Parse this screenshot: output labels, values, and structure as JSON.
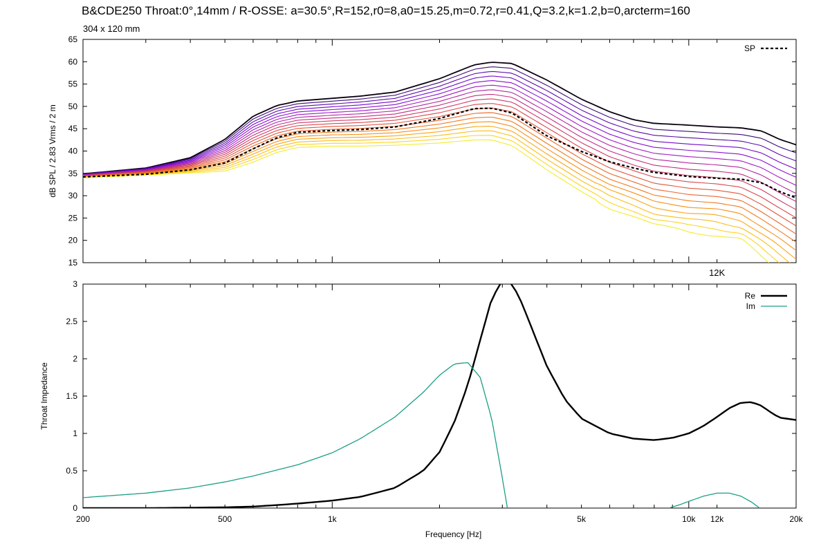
{
  "title": "B&CDE250 Throat:0°,14mm / R-OSSE: a=30.5°,R=152,r0=8,a0=15.25,m=0.72,r=0.41,Q=3.2,k=1.2,b=0,arcterm=160",
  "subtitle": "304 x 120 mm",
  "chart_data": [
    {
      "type": "line",
      "xscale": "log",
      "xlim": [
        200,
        20000
      ],
      "ylim": [
        15,
        65
      ],
      "ylabel": "dB SPL / 2.83 Vrms / 2 m",
      "yticks": [
        15,
        20,
        25,
        30,
        35,
        40,
        45,
        50,
        55,
        60,
        65
      ],
      "annotation": "12K",
      "legend": {
        "position": "top-right",
        "entries": [
          "SP"
        ]
      },
      "curve_colors": [
        "#0a0010",
        "#3c0b78",
        "#5a0aa8",
        "#7309c8",
        "#8a10d0",
        "#9e1bc0",
        "#b0259f",
        "#c02e80",
        "#cc3a66",
        "#d8474e",
        "#e1563b",
        "#ea662a",
        "#f17a1f",
        "#f68f18",
        "#f9a515",
        "#fbbd18",
        "#fcd520",
        "#f3ec2e"
      ],
      "sp_series": {
        "name": "SP",
        "x": [
          200,
          300,
          400,
          500,
          600,
          700,
          800,
          1000,
          1200,
          1500,
          2000,
          2500,
          2800,
          3200,
          4000,
          5000,
          6000,
          7000,
          8000,
          10000,
          12000,
          14000,
          16000,
          18000,
          20000
        ],
        "values": [
          34.2,
          34.8,
          35.8,
          37.3,
          40.5,
          43.0,
          44.2,
          44.6,
          44.8,
          45.4,
          47.3,
          49.5,
          49.6,
          48.5,
          43.4,
          39.9,
          37.6,
          36.2,
          35.2,
          34.3,
          33.9,
          33.7,
          32.9,
          30.9,
          29.5
        ]
      },
      "polar_series_envelope": {
        "x": [
          200,
          300,
          400,
          500,
          600,
          700,
          800,
          1000,
          1200,
          1500,
          2000,
          2500,
          2800,
          3200,
          4000,
          5000,
          6000,
          7000,
          8000,
          10000,
          12000,
          14000,
          16000,
          18000,
          20000
        ],
        "top_values": [
          34.9,
          36.2,
          38.5,
          42.6,
          47.8,
          50.2,
          51.2,
          51.8,
          52.3,
          53.2,
          56.2,
          59.3,
          59.9,
          59.6,
          55.9,
          51.6,
          48.8,
          47.0,
          46.2,
          45.8,
          45.4,
          45.2,
          44.5,
          42.6,
          41.4
        ],
        "bottom_values": [
          34.0,
          34.6,
          35.1,
          35.5,
          37.5,
          39.7,
          40.8,
          41.1,
          41.1,
          41.3,
          41.8,
          42.5,
          42.5,
          41.2,
          35.8,
          30.9,
          27.4,
          25.5,
          23.4,
          21.8,
          21.3,
          20.1,
          16.5,
          13.5,
          10.5
        ],
        "count": 18
      }
    },
    {
      "type": "line",
      "xscale": "log",
      "xlim": [
        200,
        20000
      ],
      "ylim": [
        0,
        3
      ],
      "xlabel": "Frequency [Hz]",
      "ylabel": "Throat Impedance",
      "xticks": [
        200,
        500,
        1000,
        5000,
        10000,
        12000,
        20000
      ],
      "xticklabels": [
        "200",
        "500",
        "1k",
        "5k",
        "10k",
        "12k",
        "20k"
      ],
      "yticks": [
        0,
        0.5,
        1,
        1.5,
        2,
        2.5,
        3
      ],
      "yticklabels": [
        "0",
        "0.5",
        "1",
        "1.5",
        "2",
        "2.5",
        "3"
      ],
      "legend": {
        "position": "top-right",
        "entries": [
          "Re",
          "Im"
        ]
      },
      "series": [
        {
          "name": "Re",
          "color": "#000000",
          "x": [
            200,
            300,
            400,
            500,
            600,
            700,
            800,
            1000,
            1200,
            1500,
            1800,
            2000,
            2200,
            2400,
            2600,
            2800,
            3000,
            3200,
            3400,
            3600,
            4000,
            4500,
            5000,
            6000,
            7000,
            8000,
            9000,
            10000,
            11000,
            12000,
            13000,
            14000,
            15000,
            16000,
            17000,
            18000,
            20000
          ],
          "values": [
            0.0,
            0.0,
            0.005,
            0.01,
            0.02,
            0.04,
            0.06,
            0.1,
            0.15,
            0.27,
            0.5,
            0.75,
            1.15,
            1.65,
            2.25,
            2.8,
            3.05,
            3.0,
            2.75,
            2.45,
            1.9,
            1.45,
            1.2,
            1.0,
            0.93,
            0.91,
            0.94,
            1.0,
            1.1,
            1.22,
            1.34,
            1.41,
            1.42,
            1.37,
            1.28,
            1.21,
            1.18
          ]
        },
        {
          "name": "Im",
          "color": "#1a9e84",
          "x": [
            200,
            300,
            400,
            500,
            600,
            700,
            800,
            1000,
            1200,
            1500,
            1800,
            2000,
            2200,
            2400,
            2600,
            2800,
            3000,
            3100
          ],
          "values": [
            0.14,
            0.2,
            0.27,
            0.35,
            0.43,
            0.51,
            0.58,
            0.74,
            0.93,
            1.22,
            1.55,
            1.78,
            1.93,
            1.95,
            1.75,
            1.2,
            0.4,
            0.0
          ]
        },
        {
          "name": "Im",
          "color": "#1a9e84",
          "x": [
            8800,
            9500,
            10000,
            11000,
            12000,
            13000,
            14000,
            15000,
            15800
          ],
          "values": [
            0.0,
            0.05,
            0.09,
            0.16,
            0.2,
            0.2,
            0.16,
            0.08,
            0.0
          ]
        }
      ]
    }
  ]
}
